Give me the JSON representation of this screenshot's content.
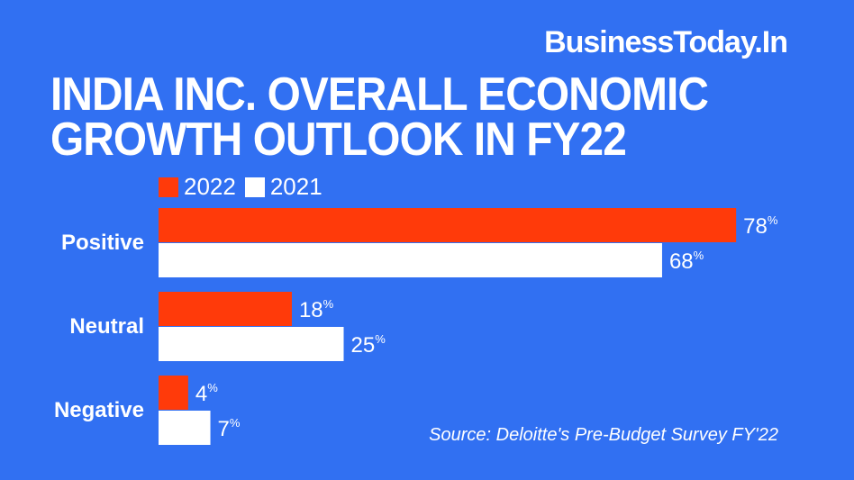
{
  "brand": "BusinessToday.In",
  "chart_data": {
    "type": "bar",
    "orientation": "horizontal",
    "title": "INDIA INC. OVERALL ECONOMIC GROWTH OUTLOOK IN FY22",
    "categories": [
      "Positive",
      "Neutral",
      "Negative"
    ],
    "series": [
      {
        "name": "2022",
        "values": [
          78,
          18,
          4
        ],
        "color": "#ff3a0a"
      },
      {
        "name": "2021",
        "values": [
          68,
          25,
          7
        ],
        "color": "#ffffff"
      }
    ],
    "value_suffix": "%",
    "legend": "top-left",
    "grid": false,
    "xlim": [
      0,
      100
    ]
  },
  "source": "Source: Deloitte's Pre-Budget Survey FY'22",
  "colors": {
    "background": "#3170f2"
  }
}
